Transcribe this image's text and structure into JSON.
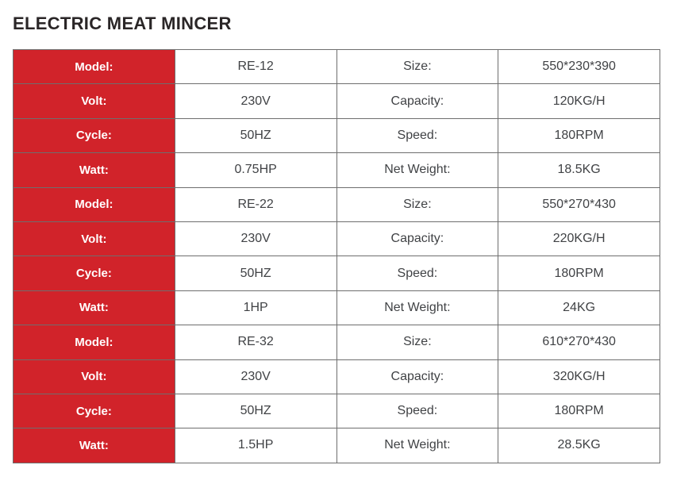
{
  "page": {
    "title": "ELECTRIC MEAT MINCER",
    "accent_color": "#d1232a",
    "border_color": "#6e6e6e",
    "label_text_color": "#ffffff",
    "value_text_color": "#404245"
  },
  "table": {
    "columns": [
      "attribute",
      "value",
      "attribute",
      "value"
    ],
    "rows": [
      {
        "c1": "Model:",
        "c2": "RE-12",
        "c3": "Size:",
        "c4": "550*230*390"
      },
      {
        "c1": "Volt:",
        "c2": "230V",
        "c3": "Capacity:",
        "c4": "120KG/H"
      },
      {
        "c1": "Cycle:",
        "c2": "50HZ",
        "c3": "Speed:",
        "c4": "180RPM"
      },
      {
        "c1": "Watt:",
        "c2": "0.75HP",
        "c3": "Net Weight:",
        "c4": "18.5KG"
      },
      {
        "c1": "Model:",
        "c2": "RE-22",
        "c3": "Size:",
        "c4": "550*270*430"
      },
      {
        "c1": "Volt:",
        "c2": "230V",
        "c3": "Capacity:",
        "c4": "220KG/H"
      },
      {
        "c1": "Cycle:",
        "c2": "50HZ",
        "c3": "Speed:",
        "c4": "180RPM"
      },
      {
        "c1": "Watt:",
        "c2": "1HP",
        "c3": "Net Weight:",
        "c4": "24KG"
      },
      {
        "c1": "Model:",
        "c2": "RE-32",
        "c3": "Size:",
        "c4": "610*270*430"
      },
      {
        "c1": "Volt:",
        "c2": "230V",
        "c3": "Capacity:",
        "c4": "320KG/H"
      },
      {
        "c1": "Cycle:",
        "c2": "50HZ",
        "c3": "Speed:",
        "c4": "180RPM"
      },
      {
        "c1": "Watt:",
        "c2": "1.5HP",
        "c3": "Net Weight:",
        "c4": "28.5KG"
      }
    ]
  }
}
